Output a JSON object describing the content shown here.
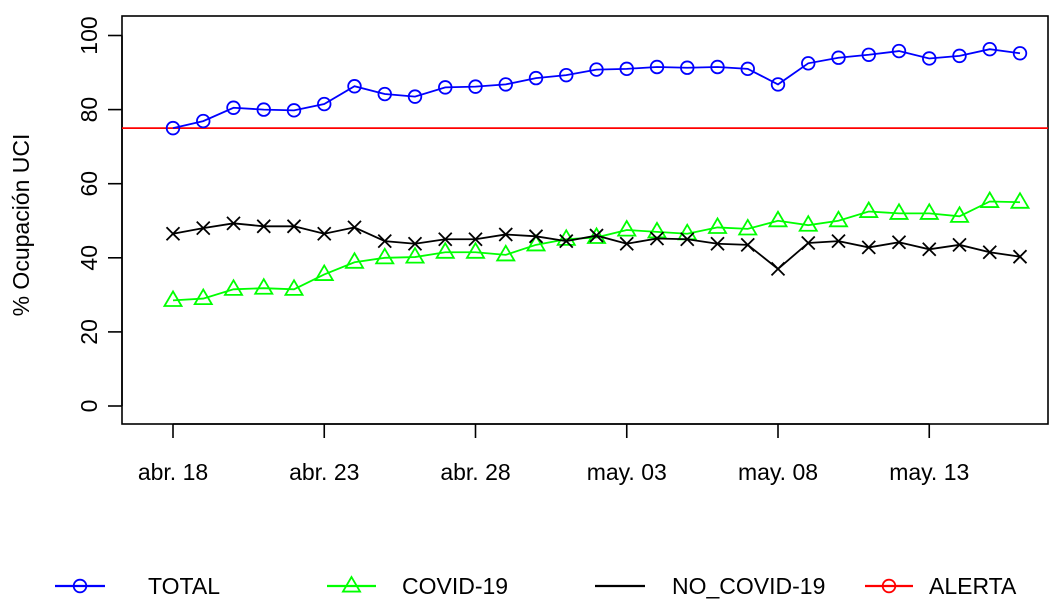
{
  "chart_data": {
    "type": "line",
    "ylabel": "% Ocupación UCI",
    "xlabel": "",
    "title": "",
    "x": [
      "abr. 18",
      "abr. 19",
      "abr. 20",
      "abr. 21",
      "abr. 22",
      "abr. 23",
      "abr. 24",
      "abr. 25",
      "abr. 26",
      "abr. 27",
      "abr. 28",
      "abr. 29",
      "abr. 30",
      "may. 01",
      "may. 02",
      "may. 03",
      "may. 04",
      "may. 05",
      "may. 06",
      "may. 07",
      "may. 08",
      "may. 09",
      "may. 10",
      "may. 11",
      "may. 12",
      "may. 13",
      "may. 14",
      "may. 15",
      "may. 16"
    ],
    "x_ticks": [
      "abr. 18",
      "abr. 23",
      "abr. 28",
      "may. 03",
      "may. 08",
      "may. 13"
    ],
    "ylim": [
      0,
      100
    ],
    "y_ticks": [
      "0",
      "20",
      "40",
      "60",
      "80",
      "100"
    ],
    "grid": false,
    "legend_position": "bottom",
    "series": [
      {
        "name": "TOTAL",
        "color": "#0000ff",
        "marker": "circle",
        "values": [
          75.0,
          76.9,
          80.5,
          80.0,
          79.8,
          81.5,
          86.3,
          84.2,
          83.5,
          86.0,
          86.2,
          86.8,
          88.5,
          89.3,
          90.8,
          91.0,
          91.5,
          91.3,
          91.5,
          91.0,
          86.8,
          92.5,
          94.0,
          94.8,
          95.8,
          93.8,
          94.5,
          96.3,
          95.2
        ]
      },
      {
        "name": "COVID-19",
        "color": "#00ff00",
        "marker": "triangle",
        "values": [
          28.5,
          29.0,
          31.5,
          31.8,
          31.5,
          35.5,
          38.8,
          40.0,
          40.2,
          41.5,
          41.5,
          40.8,
          43.5,
          45.0,
          45.5,
          47.5,
          47.0,
          46.5,
          48.2,
          47.8,
          50.0,
          48.8,
          50.0,
          52.5,
          52.0,
          52.0,
          51.2,
          55.2,
          55.0
        ]
      },
      {
        "name": "NO_COVID-19",
        "color": "#000000",
        "marker": "x",
        "values": [
          46.5,
          48.0,
          49.3,
          48.5,
          48.5,
          46.5,
          48.2,
          44.5,
          43.8,
          45.0,
          45.0,
          46.3,
          45.8,
          44.5,
          46.0,
          43.8,
          45.2,
          45.0,
          43.8,
          43.5,
          37.0,
          44.0,
          44.5,
          42.8,
          44.2,
          42.3,
          43.5,
          41.5,
          40.3
        ]
      },
      {
        "name": "ALERTA",
        "color": "#ff0000",
        "marker": "circle",
        "constant": 75
      }
    ]
  }
}
